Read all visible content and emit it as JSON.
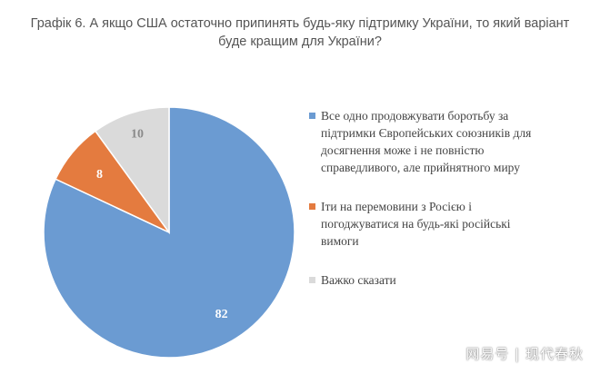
{
  "chart_data": {
    "type": "pie",
    "title_lines": [
      "Графік 6. А якщо США остаточно припинять будь-яку підтримку України, то який варіант",
      "буде кращим для України?"
    ],
    "series": [
      {
        "name": "Все одно продовжувати боротьбу за підтримки Європейських союзників для досягнення може і не повністю справедливого, але прийнятного миру",
        "legend_lines": [
          "Все одно продовжувати боротьбу за",
          "підтримки Європейських союзників для",
          "досягнення може і не повністю",
          "справедливого, але прийнятного миру"
        ],
        "value": 82,
        "color": "#6B9BD2",
        "label_color": "#ffffff"
      },
      {
        "name": "Іти на перемовини з Росією і погоджуватися на будь-які російські вимоги",
        "legend_lines": [
          "Іти на перемовини з Росією і",
          "погоджуватися на будь-які російські",
          "вимоги"
        ],
        "value": 8,
        "color": "#E47B3F",
        "label_color": "#ffffff"
      },
      {
        "name": "Важко сказати",
        "legend_lines": [
          "Важко сказати"
        ],
        "value": 10,
        "color": "#DADADA",
        "label_color": "#8a8a8a"
      }
    ],
    "start": "12 o'clock",
    "direction": "clockwise",
    "legend_position": "right"
  },
  "watermark": "网易号 | 现代春秋"
}
